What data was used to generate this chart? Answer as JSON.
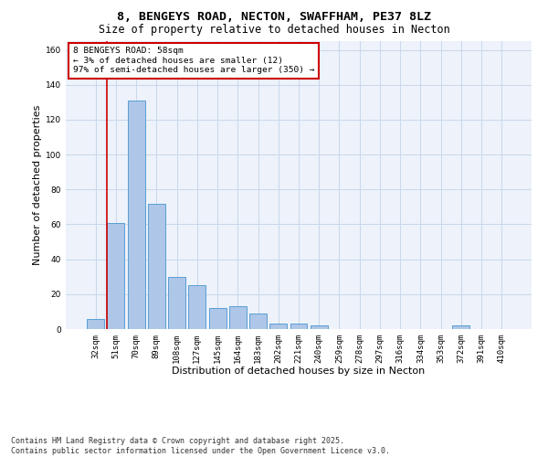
{
  "title_line1": "8, BENGEYS ROAD, NECTON, SWAFFHAM, PE37 8LZ",
  "title_line2": "Size of property relative to detached houses in Necton",
  "xlabel": "Distribution of detached houses by size in Necton",
  "ylabel": "Number of detached properties",
  "categories": [
    "32sqm",
    "51sqm",
    "70sqm",
    "89sqm",
    "108sqm",
    "127sqm",
    "145sqm",
    "164sqm",
    "183sqm",
    "202sqm",
    "221sqm",
    "240sqm",
    "259sqm",
    "278sqm",
    "297sqm",
    "316sqm",
    "334sqm",
    "353sqm",
    "372sqm",
    "391sqm",
    "410sqm"
  ],
  "values": [
    6,
    61,
    131,
    72,
    30,
    25,
    12,
    13,
    9,
    3,
    3,
    2,
    0,
    0,
    0,
    0,
    0,
    0,
    2,
    0,
    0
  ],
  "bar_color": "#aec6e8",
  "bar_edge_color": "#5a9fd4",
  "background_color": "#edf2fb",
  "grid_color": "#c8d8ea",
  "annotation_box_text": "8 BENGEYS ROAD: 58sqm\n← 3% of detached houses are smaller (12)\n97% of semi-detached houses are larger (350) →",
  "annotation_box_color": "#ffffff",
  "annotation_box_edge_color": "#cc0000",
  "vline_color": "#cc0000",
  "ylim": [
    0,
    165
  ],
  "yticks": [
    0,
    20,
    40,
    60,
    80,
    100,
    120,
    140,
    160
  ],
  "title_fontsize": 9.5,
  "subtitle_fontsize": 8.5,
  "axis_label_fontsize": 8,
  "tick_fontsize": 6.5,
  "annot_fontsize": 6.8,
  "footer_fontsize": 6.0
}
